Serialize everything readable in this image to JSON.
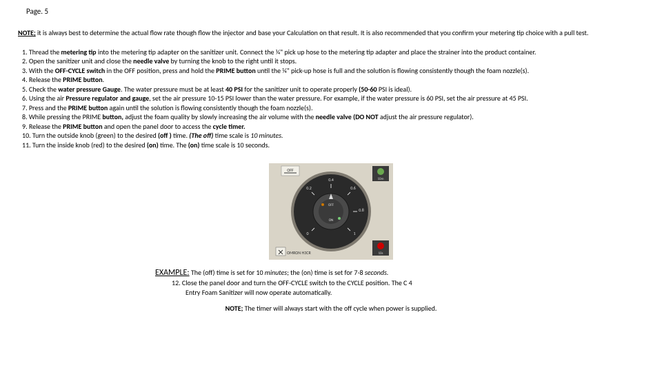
{
  "page_number": "Page. 5",
  "note": {
    "label": "NOTE;",
    "text": " it is always best to determine the actual flow rate though flow the injector and base your Calculation on that result. It is also recommended that you confirm your metering tip choice with a pull test."
  },
  "steps": [
    "Thread the <b>metering tip</b> into the metering tip adapter on the sanitizer unit. Connect the ¼\" pick up hose to the metering tip adapter and place the strainer into the product container.",
    "Open the sanitizer unit and close the <b>needle valve</b> by turning the knob to the right until it stops.",
    "With the <b>OFF-CYCLE switch</b> in the OFF position, press and hold the <b>PRIME button</b> until the ¼\" pick-up hose is full and the solution is flowing consistently though the foam nozzle(s).",
    "Release the <b>PRIME button</b>.",
    "Check the <b>water pressure Gauge</b>. The water pressure must be at least <b>40 PSI</b> for the sanitizer unit to operate properly <b>(50-60</b> PSI is ideal).",
    "Using the air <b>Pressure regulator and gauge</b>, set the air pressure 10-15 PSI lower than the water pressure. For example, if the water pressure is 60 PSI, set the air pressure at 45 PSI.",
    "Press and the <b>PRIME button</b> again until the solution is flowing consistently though the foam nozzle(s).",
    "While pressing the PRIME <b>button,</b> adjust the foam quality by slowly increasing the air volume with the <b>needle valve (DO NOT</b> adjust the air pressure regulator).",
    "Release the <b>PRIME button</b> and open the panel door to access the <b>cycle timer.</b>",
    "Turn the outside knob (green) to the desired <b>(off )</b> time. <b><i>(The off)</i></b> time scale is <i>10 minutes.</i>",
    "Turn the inside knob (red) to the desired <b>(on)</b> time. The <b>(on)</b> time scale is 10 seconds."
  ],
  "example": {
    "label": "EXAMPLE:",
    "text": " The (off) time is set for 10 <i>minutes</i>; the (on) time is set for 7-8 <i>seconds.</i>",
    "step12": "12. Close the panel door and turn the OFF-CYCLE switch to the CYCLE position. The C 4",
    "step12_cont": "Entry Foam Sanitizer will now operate automatically."
  },
  "note2": {
    "label": "NOTE;",
    "text": " The timer will always start with the off cycle when power is supplied."
  },
  "dial": {
    "bg": "#d9d4c7",
    "face": "#2a2a2a",
    "ring": "#7f7a70",
    "label_off": "OFF",
    "label_10m": "10m",
    "label_10s": "10s",
    "brand": "OMRON H3CR",
    "ticks": [
      "0.2",
      "0.4",
      "0.6",
      "0.8",
      "1"
    ],
    "indicator_green": "#6aa84f",
    "indicator_red": "#cc0000",
    "corner_bg": "#3a3a3a"
  }
}
